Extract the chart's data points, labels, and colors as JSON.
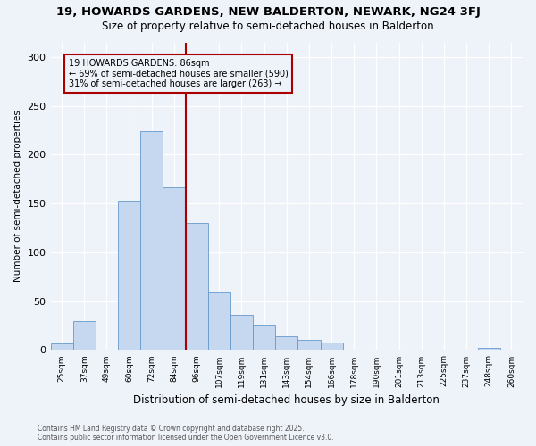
{
  "title1": "19, HOWARDS GARDENS, NEW BALDERTON, NEWARK, NG24 3FJ",
  "title2": "Size of property relative to semi-detached houses in Balderton",
  "xlabel": "Distribution of semi-detached houses by size in Balderton",
  "ylabel": "Number of semi-detached properties",
  "footnote1": "Contains HM Land Registry data © Crown copyright and database right 2025.",
  "footnote2": "Contains public sector information licensed under the Open Government Licence v3.0.",
  "annotation_line1": "19 HOWARDS GARDENS: 86sqm",
  "annotation_line2": "← 69% of semi-detached houses are smaller (590)",
  "annotation_line3": "31% of semi-detached houses are larger (263) →",
  "vline_color": "#aa0000",
  "bar_color": "#c5d8f0",
  "bar_edgecolor": "#6699cc",
  "categories": [
    "25sqm",
    "37sqm",
    "49sqm",
    "60sqm",
    "72sqm",
    "84sqm",
    "96sqm",
    "107sqm",
    "119sqm",
    "131sqm",
    "143sqm",
    "154sqm",
    "166sqm",
    "178sqm",
    "190sqm",
    "201sqm",
    "213sqm",
    "225sqm",
    "237sqm",
    "248sqm",
    "260sqm"
  ],
  "values": [
    7,
    30,
    0,
    153,
    224,
    167,
    130,
    60,
    36,
    26,
    14,
    10,
    8,
    0,
    0,
    0,
    0,
    0,
    0,
    2,
    0
  ],
  "ylim": [
    0,
    315
  ],
  "yticks": [
    0,
    50,
    100,
    150,
    200,
    250,
    300
  ],
  "background_color": "#eef2f9",
  "grid_color": "#d0d8e8"
}
